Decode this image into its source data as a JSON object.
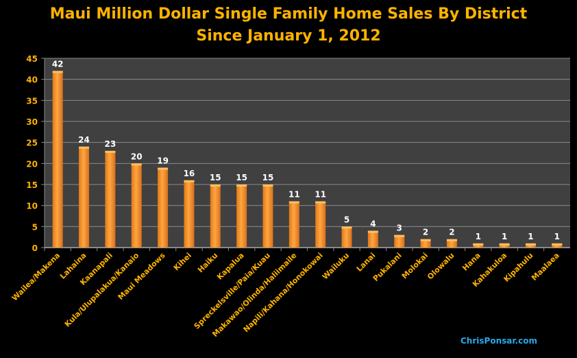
{
  "chart_data": {
    "type": "bar",
    "title": "Maui Million Dollar Single Family Home Sales By District",
    "subtitle": "Since January 1, 2012",
    "xlabel": "",
    "ylabel": "",
    "ylim": [
      0,
      45
    ],
    "yticks": [
      0,
      5,
      10,
      15,
      20,
      25,
      30,
      35,
      40,
      45
    ],
    "grid": true,
    "categories": [
      "Wailea/Makena",
      "Lahaina",
      "Kaanapali",
      "Kula/Ulupalakua/Kanaio",
      "Maui Meadows",
      "Kihei",
      "Haiku",
      "Kapalua",
      "Spreckelsville/Paia/Kuau",
      "Makawao/Olinda/Haliimaile",
      "Napili/Kahana/Honokowai",
      "Wailuku",
      "Lanai",
      "Pukalani",
      "Molokai",
      "Olowalu",
      "Hana",
      "Kahakuloa",
      "Kipahulu",
      "Maalaea"
    ],
    "values": [
      42,
      24,
      23,
      20,
      19,
      16,
      15,
      15,
      15,
      11,
      11,
      5,
      4,
      3,
      2,
      2,
      1,
      1,
      1,
      1
    ],
    "colors": {
      "bar": "#F7922A",
      "plot_bg": "#404040",
      "text": "#FFB300",
      "value_label": "#FFFFFF"
    }
  },
  "watermark": "ChrisPonsar.com"
}
